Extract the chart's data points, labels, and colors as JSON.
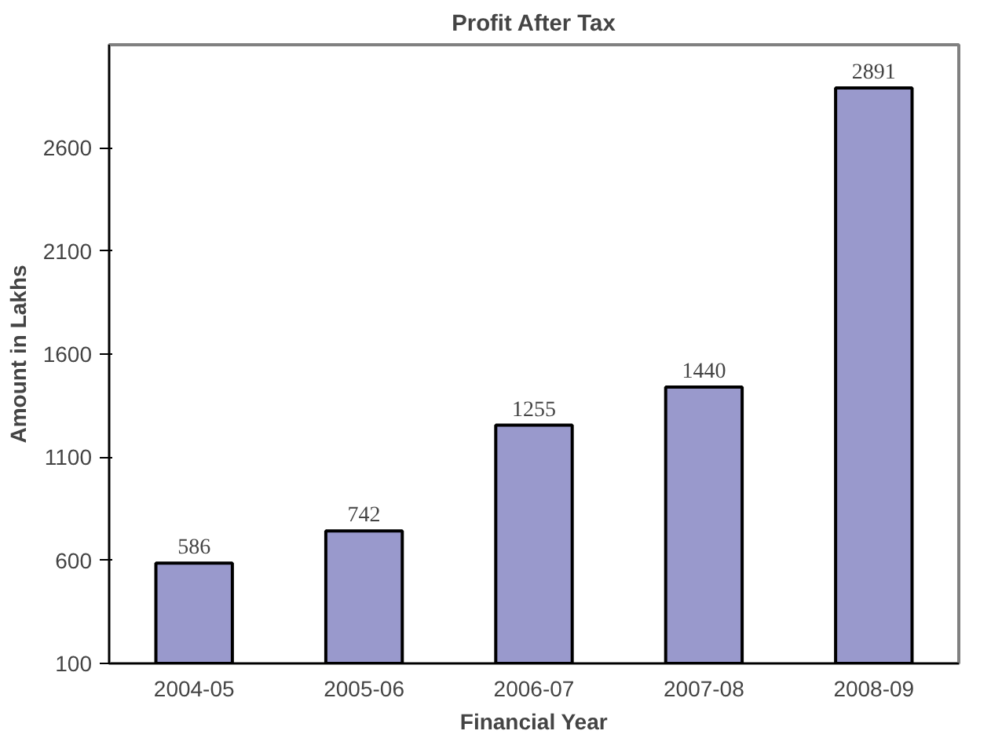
{
  "chart_data": {
    "type": "bar",
    "title": "Profit After Tax",
    "xlabel": "Financial Year",
    "ylabel": "Amount in Lakhs",
    "categories": [
      "2004-05",
      "2005-06",
      "2006-07",
      "2007-08",
      "2008-09"
    ],
    "values": [
      586,
      742,
      1255,
      1440,
      2891
    ],
    "color": "#9999cc",
    "ylim": [
      100,
      3100
    ],
    "yticks": [
      100,
      600,
      1100,
      1600,
      2100,
      2600
    ],
    "grid": false,
    "data_labels": true
  }
}
